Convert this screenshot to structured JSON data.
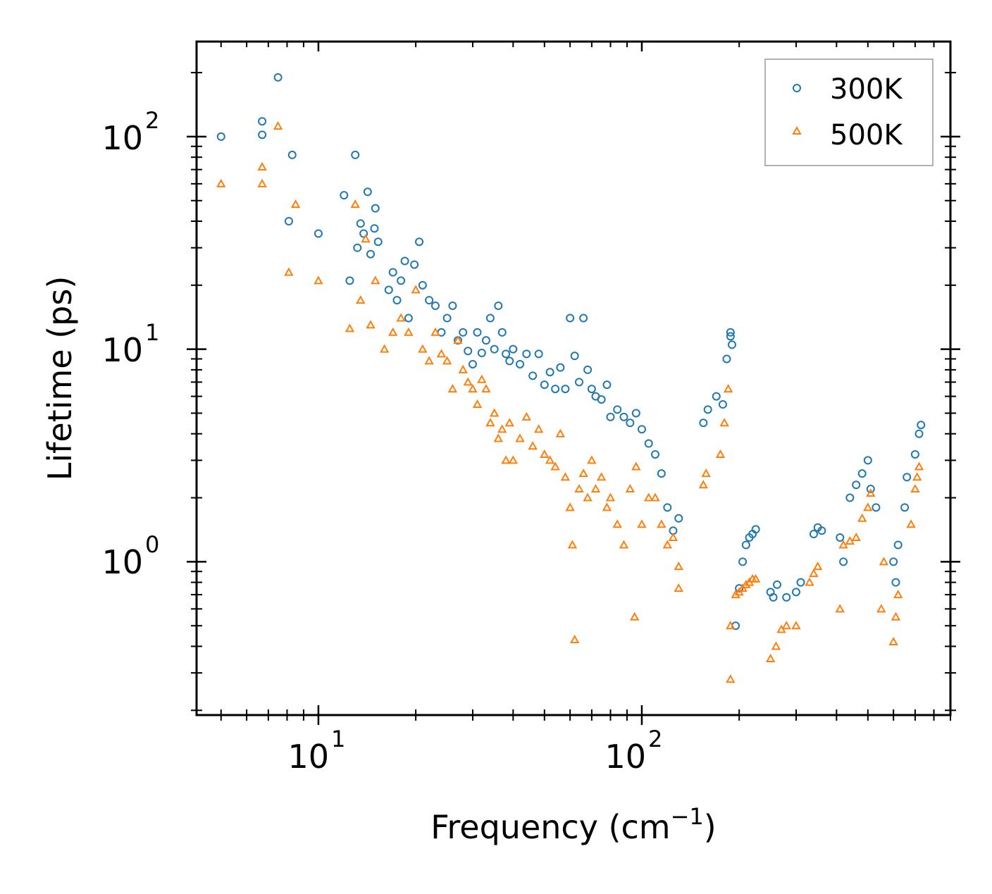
{
  "chart_data": {
    "type": "scatter",
    "title": "",
    "xlabel": "Frequency (cm",
    "xlabel_sup": "−1",
    "xlabel_close": ")",
    "ylabel": "Lifetime (ps)",
    "xscale": "log",
    "yscale": "log",
    "xlim": [
      4.2,
      900
    ],
    "ylim": [
      0.19,
      280
    ],
    "x_tick_labels": [
      {
        "value": 10,
        "base": "10",
        "exp": "1"
      },
      {
        "value": 100,
        "base": "10",
        "exp": "2"
      }
    ],
    "y_tick_labels": [
      {
        "value": 1,
        "base": "10",
        "exp": "0"
      },
      {
        "value": 10,
        "base": "10",
        "exp": "1"
      },
      {
        "value": 100,
        "base": "10",
        "exp": "2"
      }
    ],
    "legend": {
      "position": "top-right",
      "entries": [
        "300K",
        "500K"
      ]
    },
    "series": [
      {
        "name": "300K",
        "marker": "circle",
        "color": "#1f77b4",
        "x": [
          5.0,
          6.7,
          6.7,
          7.5,
          8.1,
          8.3,
          10.0,
          12.0,
          12.5,
          13.0,
          13.2,
          13.5,
          13.8,
          14.2,
          14.5,
          14.9,
          15.0,
          15.3,
          16.5,
          17.0,
          17.5,
          18.0,
          18.5,
          19.0,
          19.8,
          20.5,
          21.0,
          22.0,
          23.0,
          24.0,
          25.0,
          26.0,
          27.0,
          28.0,
          29.0,
          30.0,
          31.0,
          32.0,
          33.0,
          34.0,
          35.0,
          36.0,
          37.0,
          38.0,
          39.0,
          40.0,
          42.0,
          44.0,
          46.0,
          48.0,
          50.0,
          52.0,
          54.0,
          56.0,
          58.0,
          60.0,
          62.0,
          64.0,
          66.0,
          68.0,
          70.0,
          72.0,
          75.0,
          78.0,
          80.0,
          84.0,
          88.0,
          92.0,
          96.0,
          100.0,
          105.0,
          110.0,
          115.0,
          120.0,
          125.0,
          130.0,
          155.0,
          160.0,
          170.0,
          178.0,
          183.0,
          188.0,
          188.0,
          190.0,
          195.0,
          200.0,
          205.0,
          210.0,
          215.0,
          220.0,
          225.0,
          250.0,
          255.0,
          262.0,
          280.0,
          300.0,
          310.0,
          340.0,
          350.0,
          360.0,
          410.0,
          420.0,
          440.0,
          460.0,
          480.0,
          500.0,
          510.0,
          530.0,
          600.0,
          610.0,
          620.0,
          650.0,
          660.0,
          700.0,
          720.0,
          730.0
        ],
        "y": [
          100,
          118,
          102,
          190,
          40,
          82,
          35,
          53,
          21,
          82,
          30,
          39,
          35,
          55,
          28,
          37,
          46,
          32,
          19,
          23,
          17,
          21,
          26,
          14,
          25,
          32,
          20,
          17,
          16,
          12,
          14,
          16,
          11,
          12,
          9.8,
          8.5,
          12,
          9.6,
          11,
          14,
          10,
          16,
          12,
          9.5,
          8.8,
          10,
          8.5,
          9.5,
          7.5,
          9.5,
          6.8,
          7.8,
          6.5,
          8.2,
          6.5,
          14,
          9.3,
          7.0,
          14,
          8.0,
          6.5,
          6.0,
          5.8,
          6.8,
          4.8,
          5.2,
          4.8,
          4.5,
          5.0,
          4.2,
          3.6,
          3.2,
          2.6,
          1.8,
          1.4,
          1.6,
          4.5,
          5.2,
          6.0,
          5.5,
          9.0,
          11.5,
          12.0,
          10.5,
          0.5,
          0.75,
          1.0,
          1.2,
          1.3,
          1.35,
          1.42,
          0.72,
          0.68,
          0.78,
          0.68,
          0.72,
          0.8,
          1.35,
          1.45,
          1.4,
          1.3,
          1.0,
          2.0,
          2.3,
          2.6,
          3.0,
          2.2,
          1.8,
          1.0,
          0.8,
          1.2,
          1.8,
          2.5,
          3.2,
          4.0,
          4.4
        ]
      },
      {
        "name": "500K",
        "marker": "triangle",
        "color": "#ff7f0e",
        "x": [
          5.0,
          6.7,
          6.7,
          7.5,
          8.1,
          8.5,
          10.0,
          12.5,
          13.0,
          13.5,
          14.0,
          14.5,
          15.0,
          16.0,
          17.0,
          18.0,
          19.0,
          20.0,
          21.0,
          22.0,
          23.0,
          24.0,
          25.0,
          26.0,
          27.0,
          28.0,
          29.0,
          30.0,
          31.0,
          32.0,
          33.0,
          34.0,
          35.0,
          36.0,
          37.0,
          38.0,
          39.0,
          40.0,
          42.0,
          44.0,
          46.0,
          48.0,
          50.0,
          52.0,
          54.0,
          56.0,
          58.0,
          60.0,
          61.0,
          62.0,
          64.0,
          66.0,
          68.0,
          70.0,
          72.0,
          75.0,
          78.0,
          80.0,
          84.0,
          88.0,
          92.0,
          95.0,
          96.0,
          100.0,
          105.0,
          110.0,
          115.0,
          120.0,
          125.0,
          130.0,
          130.0,
          155.0,
          158.0,
          175.0,
          180.0,
          185.0,
          188.0,
          188.0,
          195.0,
          200.0,
          205.0,
          210.0,
          215.0,
          220.0,
          225.0,
          250.0,
          260.0,
          270.0,
          280.0,
          300.0,
          330.0,
          340.0,
          350.0,
          410.0,
          420.0,
          440.0,
          460.0,
          480.0,
          500.0,
          510.0,
          550.0,
          560.0,
          600.0,
          610.0,
          620.0,
          680.0,
          700.0,
          710.0,
          720.0
        ],
        "y": [
          60,
          60,
          72,
          112,
          23,
          48,
          21,
          12.5,
          48,
          17,
          33,
          13,
          21,
          10,
          12,
          14,
          12,
          19,
          10,
          8.8,
          12,
          9.5,
          8.8,
          6.5,
          11,
          8.0,
          7.0,
          6.5,
          5.5,
          7.2,
          6.5,
          4.5,
          5.0,
          3.8,
          4.2,
          3.0,
          4.5,
          3.0,
          3.8,
          4.8,
          3.5,
          4.2,
          3.2,
          3.0,
          2.8,
          4.0,
          2.5,
          1.8,
          1.2,
          0.43,
          2.2,
          2.6,
          2.0,
          3.0,
          2.2,
          2.5,
          1.8,
          2.0,
          1.5,
          1.2,
          2.2,
          0.55,
          2.8,
          1.5,
          2.0,
          2.0,
          1.5,
          1.2,
          1.3,
          0.75,
          0.95,
          2.3,
          2.6,
          3.2,
          4.5,
          6.5,
          0.5,
          0.28,
          0.7,
          0.72,
          0.75,
          0.78,
          0.8,
          0.83,
          0.83,
          0.35,
          0.4,
          0.48,
          0.5,
          0.5,
          0.8,
          0.88,
          0.95,
          0.6,
          1.2,
          1.25,
          1.3,
          1.6,
          1.8,
          2.1,
          0.6,
          1.0,
          0.42,
          0.55,
          0.7,
          1.5,
          2.2,
          2.5,
          2.8
        ]
      }
    ]
  }
}
